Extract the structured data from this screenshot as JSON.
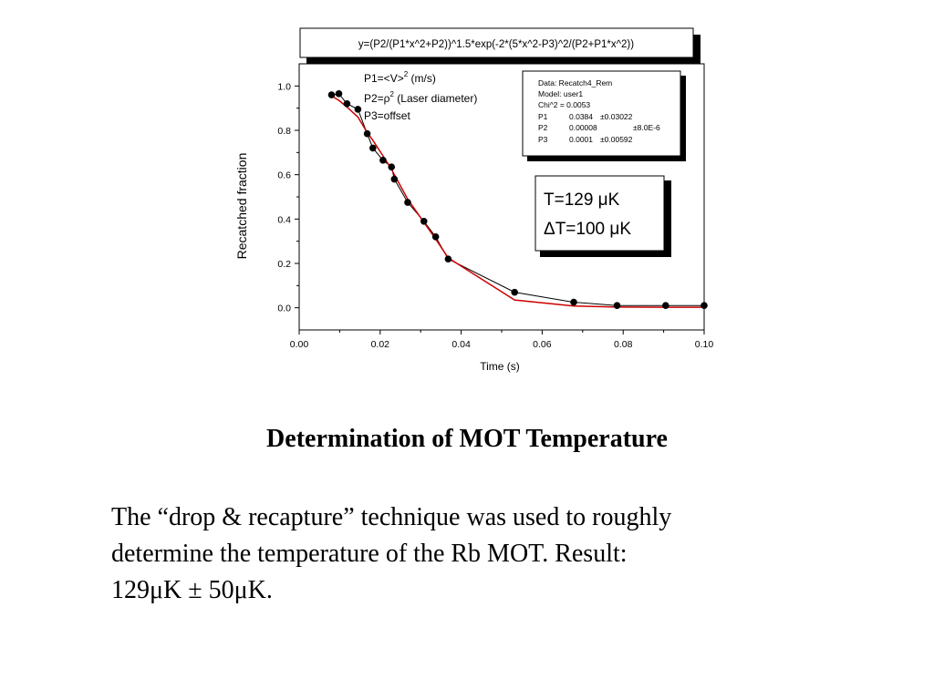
{
  "slide": {
    "title": "Determination of MOT Temperature",
    "body_lines": [
      "The “drop & recapture” technique was used to roughly",
      "determine the temperature of the Rb MOT.  Result:",
      "129μK ± 50μK."
    ]
  },
  "chart_data": {
    "type": "scatter",
    "title": "y=(P2/(P1*x^2+P2))^1.5*exp(-2*(5*x^2-P3)^2/(P2+P1*x^2))",
    "xlabel": "Time (s)",
    "ylabel": "Recatched fraction",
    "xlim": [
      0.0,
      0.1
    ],
    "ylim": [
      -0.1,
      1.1
    ],
    "x_ticks": [
      "0.00",
      "0.02",
      "0.04",
      "0.06",
      "0.08",
      "0.10"
    ],
    "y_ticks": [
      "0.0",
      "0.2",
      "0.4",
      "0.6",
      "0.8",
      "1.0"
    ],
    "x_tick_values": [
      0.0,
      0.02,
      0.04,
      0.06,
      0.08,
      0.1
    ],
    "y_tick_values": [
      0.0,
      0.2,
      0.4,
      0.6,
      0.8,
      1.0
    ],
    "grid": false,
    "series": [
      {
        "kind": "data",
        "color": "#000000",
        "x": [
          0.008,
          0.0098,
          0.0118,
          0.0145,
          0.0168,
          0.0182,
          0.0207,
          0.0228,
          0.0235,
          0.0268,
          0.0308,
          0.0337,
          0.0368,
          0.0532,
          0.0678,
          0.0785,
          0.0905,
          0.1
        ],
        "y": [
          0.96,
          0.965,
          0.92,
          0.895,
          0.785,
          0.72,
          0.665,
          0.635,
          0.58,
          0.475,
          0.39,
          0.32,
          0.22,
          0.07,
          0.025,
          0.01,
          0.01,
          0.01
        ]
      },
      {
        "kind": "fit",
        "color": "#cc0000",
        "x": [
          0.008,
          0.0098,
          0.0118,
          0.0145,
          0.0168,
          0.0182,
          0.0207,
          0.0228,
          0.0235,
          0.0268,
          0.0308,
          0.0337,
          0.0368,
          0.0532,
          0.0678,
          0.0785,
          0.0905,
          0.1
        ],
        "y": [
          0.955,
          0.935,
          0.905,
          0.86,
          0.79,
          0.755,
          0.685,
          0.625,
          0.6,
          0.49,
          0.385,
          0.31,
          0.225,
          0.035,
          0.008,
          0.003,
          0.002,
          0.002
        ]
      }
    ],
    "annotations": {
      "params": [
        {
          "name": "P1=<V>",
          "sup": "2",
          "rest": " (m/s)"
        },
        {
          "name": "P2=ρ",
          "sup": "2",
          "rest": " (Laser diameter)"
        },
        {
          "name": "P3=offset",
          "sup": "",
          "rest": ""
        }
      ],
      "fit_box": {
        "lines": [
          "Data: Recatch4_Rem",
          "Model: user1",
          "Chi^2 = 0.0053"
        ],
        "rows": [
          [
            "P1",
            "0.0384",
            "±0.03022"
          ],
          [
            "P2",
            "0.00008",
            "±8.0E-6"
          ],
          [
            "P3",
            "0.0001",
            "±0.00592"
          ]
        ]
      },
      "result_box": [
        "T=129 μK",
        "ΔT=100 μK"
      ]
    }
  }
}
